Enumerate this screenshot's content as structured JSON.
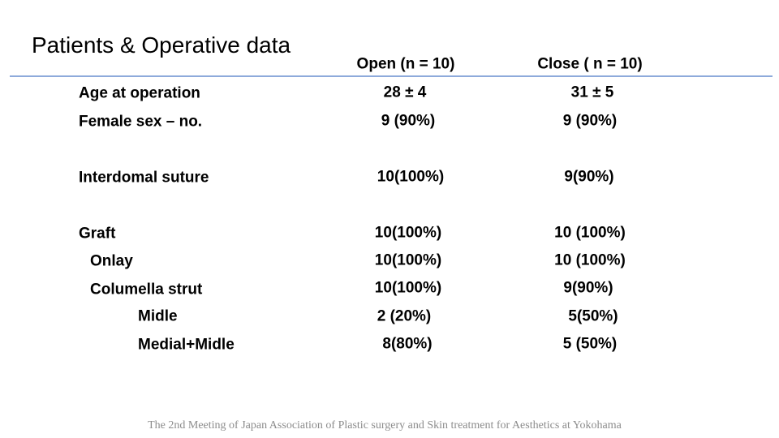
{
  "header": {
    "title": "Patients & Operative data"
  },
  "table": {
    "columns": [
      "Open (n = 10)",
      "Close ( n = 10)"
    ],
    "rows": [
      [
        "Age at operation",
        "28 ± 4",
        "31 ± 5"
      ],
      [
        "Female sex – no.",
        "9 (90%)",
        "9 (90%)"
      ],
      [
        "Interdomal suture",
        "10(100%)",
        "9(90%)"
      ],
      [
        "Graft",
        "10(100%)",
        "10 (100%)"
      ],
      [
        "Onlay",
        "10(100%)",
        "10 (100%)"
      ],
      [
        "Columella strut",
        "10(100%)",
        "9(90%)"
      ],
      [
        "Midle",
        "2 (20%)",
        "5(50%)"
      ],
      [
        "Medial+Midle",
        "8(80%)",
        "5 (50%)"
      ]
    ]
  },
  "footer": {
    "text": "The 2nd Meeting of Japan Association of Plastic surgery and Skin treatment for Aesthetics at Yokohama"
  }
}
